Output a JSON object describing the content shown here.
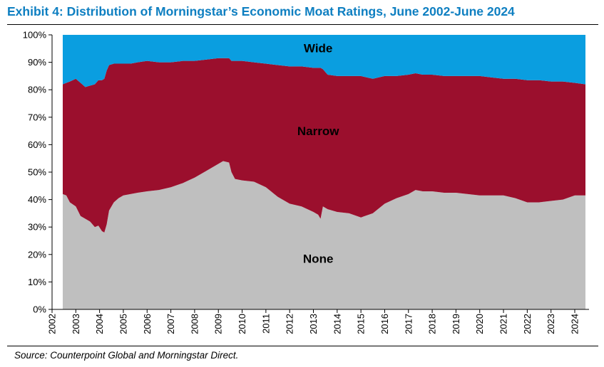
{
  "header": {
    "title": "Exhibit 4: Distribution of Morningstar’s Economic Moat Ratings, June 2002-June 2024"
  },
  "footer": {
    "source": "Source: Counterpoint Global and Morningstar Direct."
  },
  "colors": {
    "title": "#0e7fc1",
    "none": "#bfbfbf",
    "narrow": "#9b0f2d",
    "wide": "#0a9ee0"
  },
  "chart_data": {
    "type": "area",
    "stacked": true,
    "percent": true,
    "ylim": [
      0,
      100
    ],
    "yticks": [
      "0%",
      "10%",
      "20%",
      "30%",
      "40%",
      "50%",
      "60%",
      "70%",
      "80%",
      "90%",
      "100%"
    ],
    "xlim": [
      2002,
      2024.6
    ],
    "xticks": [
      "2002",
      "2003",
      "2004",
      "2005",
      "2006",
      "2007",
      "2008",
      "2009",
      "2010",
      "2011",
      "2012",
      "2013",
      "2014",
      "2015",
      "2016",
      "2017",
      "2018",
      "2019",
      "2020",
      "2021",
      "2022",
      "2023",
      "2024"
    ],
    "x": [
      2002.45,
      2002.6,
      2002.75,
      2003.0,
      2003.2,
      2003.4,
      2003.6,
      2003.8,
      2003.95,
      2004.1,
      2004.2,
      2004.3,
      2004.4,
      2004.6,
      2004.8,
      2005.0,
      2005.3,
      2005.6,
      2006.0,
      2006.5,
      2007.0,
      2007.5,
      2008.0,
      2008.5,
      2009.0,
      2009.2,
      2009.45,
      2009.55,
      2009.7,
      2010.0,
      2010.5,
      2011.0,
      2011.5,
      2012.0,
      2012.5,
      2013.0,
      2013.2,
      2013.3,
      2013.4,
      2013.6,
      2014.0,
      2014.5,
      2015.0,
      2015.5,
      2016.0,
      2016.5,
      2017.0,
      2017.3,
      2017.6,
      2018.0,
      2018.5,
      2019.0,
      2019.5,
      2020.0,
      2020.5,
      2021.0,
      2021.5,
      2022.0,
      2022.5,
      2023.0,
      2023.5,
      2024.0,
      2024.45
    ],
    "series": [
      {
        "name": "None",
        "values": [
          42,
          41.5,
          39,
          37.5,
          34,
          33,
          32,
          30,
          30.5,
          28.5,
          28,
          31,
          36,
          39,
          40.5,
          41.5,
          42,
          42.5,
          43,
          43.5,
          44.5,
          46,
          48,
          50.5,
          53,
          54,
          53.5,
          50,
          47.5,
          47,
          46.5,
          44.5,
          41,
          38.5,
          37.5,
          35.5,
          34.5,
          33,
          37.5,
          36.5,
          35.5,
          35,
          33.5,
          35,
          38.5,
          40.5,
          42,
          43.5,
          43,
          43,
          42.5,
          42.5,
          42,
          41.5,
          41.5,
          41.5,
          40.5,
          39,
          39,
          39.5,
          40,
          41.5,
          41.5
        ]
      },
      {
        "name": "Narrow",
        "values": [
          40,
          41,
          44,
          46.5,
          48.5,
          48,
          49.5,
          52,
          53,
          55,
          56,
          56,
          53,
          50.5,
          49,
          48,
          47.5,
          47.5,
          47.5,
          46.5,
          45.5,
          44.5,
          42.5,
          40.5,
          38.5,
          37.5,
          38,
          40.5,
          43,
          43.5,
          43.5,
          45,
          48,
          50,
          51,
          52.5,
          53.5,
          55,
          50,
          49,
          49.5,
          50,
          51.5,
          49,
          46.5,
          44.5,
          43.5,
          42.5,
          42.5,
          42.5,
          42.5,
          42.5,
          43,
          43.5,
          43,
          42.5,
          43.5,
          44.5,
          44.5,
          43.5,
          43,
          41,
          40.5
        ]
      },
      {
        "name": "Wide",
        "values": [
          18,
          17.5,
          17,
          16,
          17.5,
          19,
          18.5,
          18,
          16.5,
          16.5,
          16,
          13,
          11,
          10.5,
          10.5,
          10.5,
          10.5,
          10,
          9.5,
          10,
          10,
          9.5,
          9.5,
          9,
          8.5,
          8.5,
          8.5,
          9.5,
          9.5,
          9.5,
          10,
          10.5,
          11,
          11.5,
          11.5,
          12,
          12,
          12,
          12.5,
          14.5,
          15,
          15,
          15,
          16,
          15,
          15,
          14.5,
          14,
          14.5,
          14.5,
          15,
          15,
          15,
          15,
          15.5,
          16,
          16,
          16.5,
          16.5,
          17,
          17,
          17.5,
          18
        ]
      }
    ],
    "labels": [
      "Wide",
      "Narrow",
      "None"
    ],
    "grid": false,
    "legend": "none"
  }
}
